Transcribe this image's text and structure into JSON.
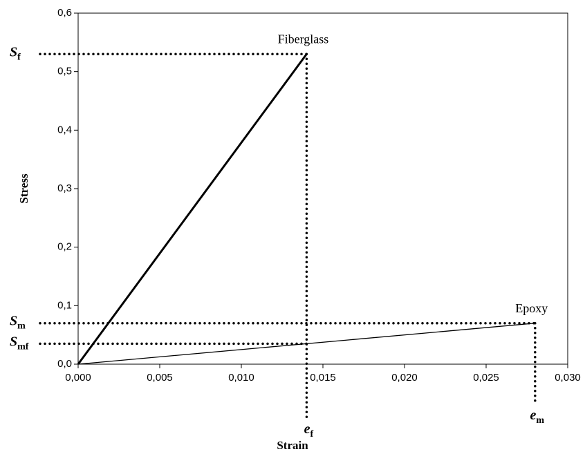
{
  "chart_data": {
    "type": "line",
    "x_label": "Strain",
    "y_label": "Stress",
    "series": [
      {
        "name": "Fiberglass",
        "color": "#000000",
        "x": [
          0,
          0.014
        ],
        "values": [
          0,
          0.53
        ]
      },
      {
        "name": "Epoxy",
        "color": "#000000",
        "x": [
          0,
          0.028
        ],
        "values": [
          0,
          0.07
        ]
      }
    ],
    "xlim": [
      0,
      0.03
    ],
    "ylim": [
      0,
      0.6
    ],
    "xticks": [
      {
        "value": 0,
        "label": "0,000"
      },
      {
        "value": 0.005,
        "label": "0,005"
      },
      {
        "value": 0.01,
        "label": "0,010"
      },
      {
        "value": 0.015,
        "label": "0,015"
      },
      {
        "value": 0.02,
        "label": "0,020"
      },
      {
        "value": 0.025,
        "label": "0,025"
      },
      {
        "value": 0.03,
        "label": "0,030"
      }
    ],
    "yticks": [
      {
        "value": 0,
        "label": "0,0"
      },
      {
        "value": 0.1,
        "label": "0,1"
      },
      {
        "value": 0.2,
        "label": "0,2"
      },
      {
        "value": 0.3,
        "label": "0,3"
      },
      {
        "value": 0.4,
        "label": "0,4"
      },
      {
        "value": 0.5,
        "label": "0,5"
      },
      {
        "value": 0.6,
        "label": "0,6"
      }
    ],
    "y_markers": [
      {
        "symbol": "S",
        "subscript": "f",
        "value": 0.53
      },
      {
        "symbol": "S",
        "subscript": "m",
        "value": 0.07
      },
      {
        "symbol": "S",
        "subscript": "mf",
        "value": 0.035
      }
    ],
    "x_markers": [
      {
        "symbol": "e",
        "subscript": "f",
        "value": 0.014
      },
      {
        "symbol": "e",
        "subscript": "m",
        "value": 0.028
      }
    ],
    "grid": false
  }
}
